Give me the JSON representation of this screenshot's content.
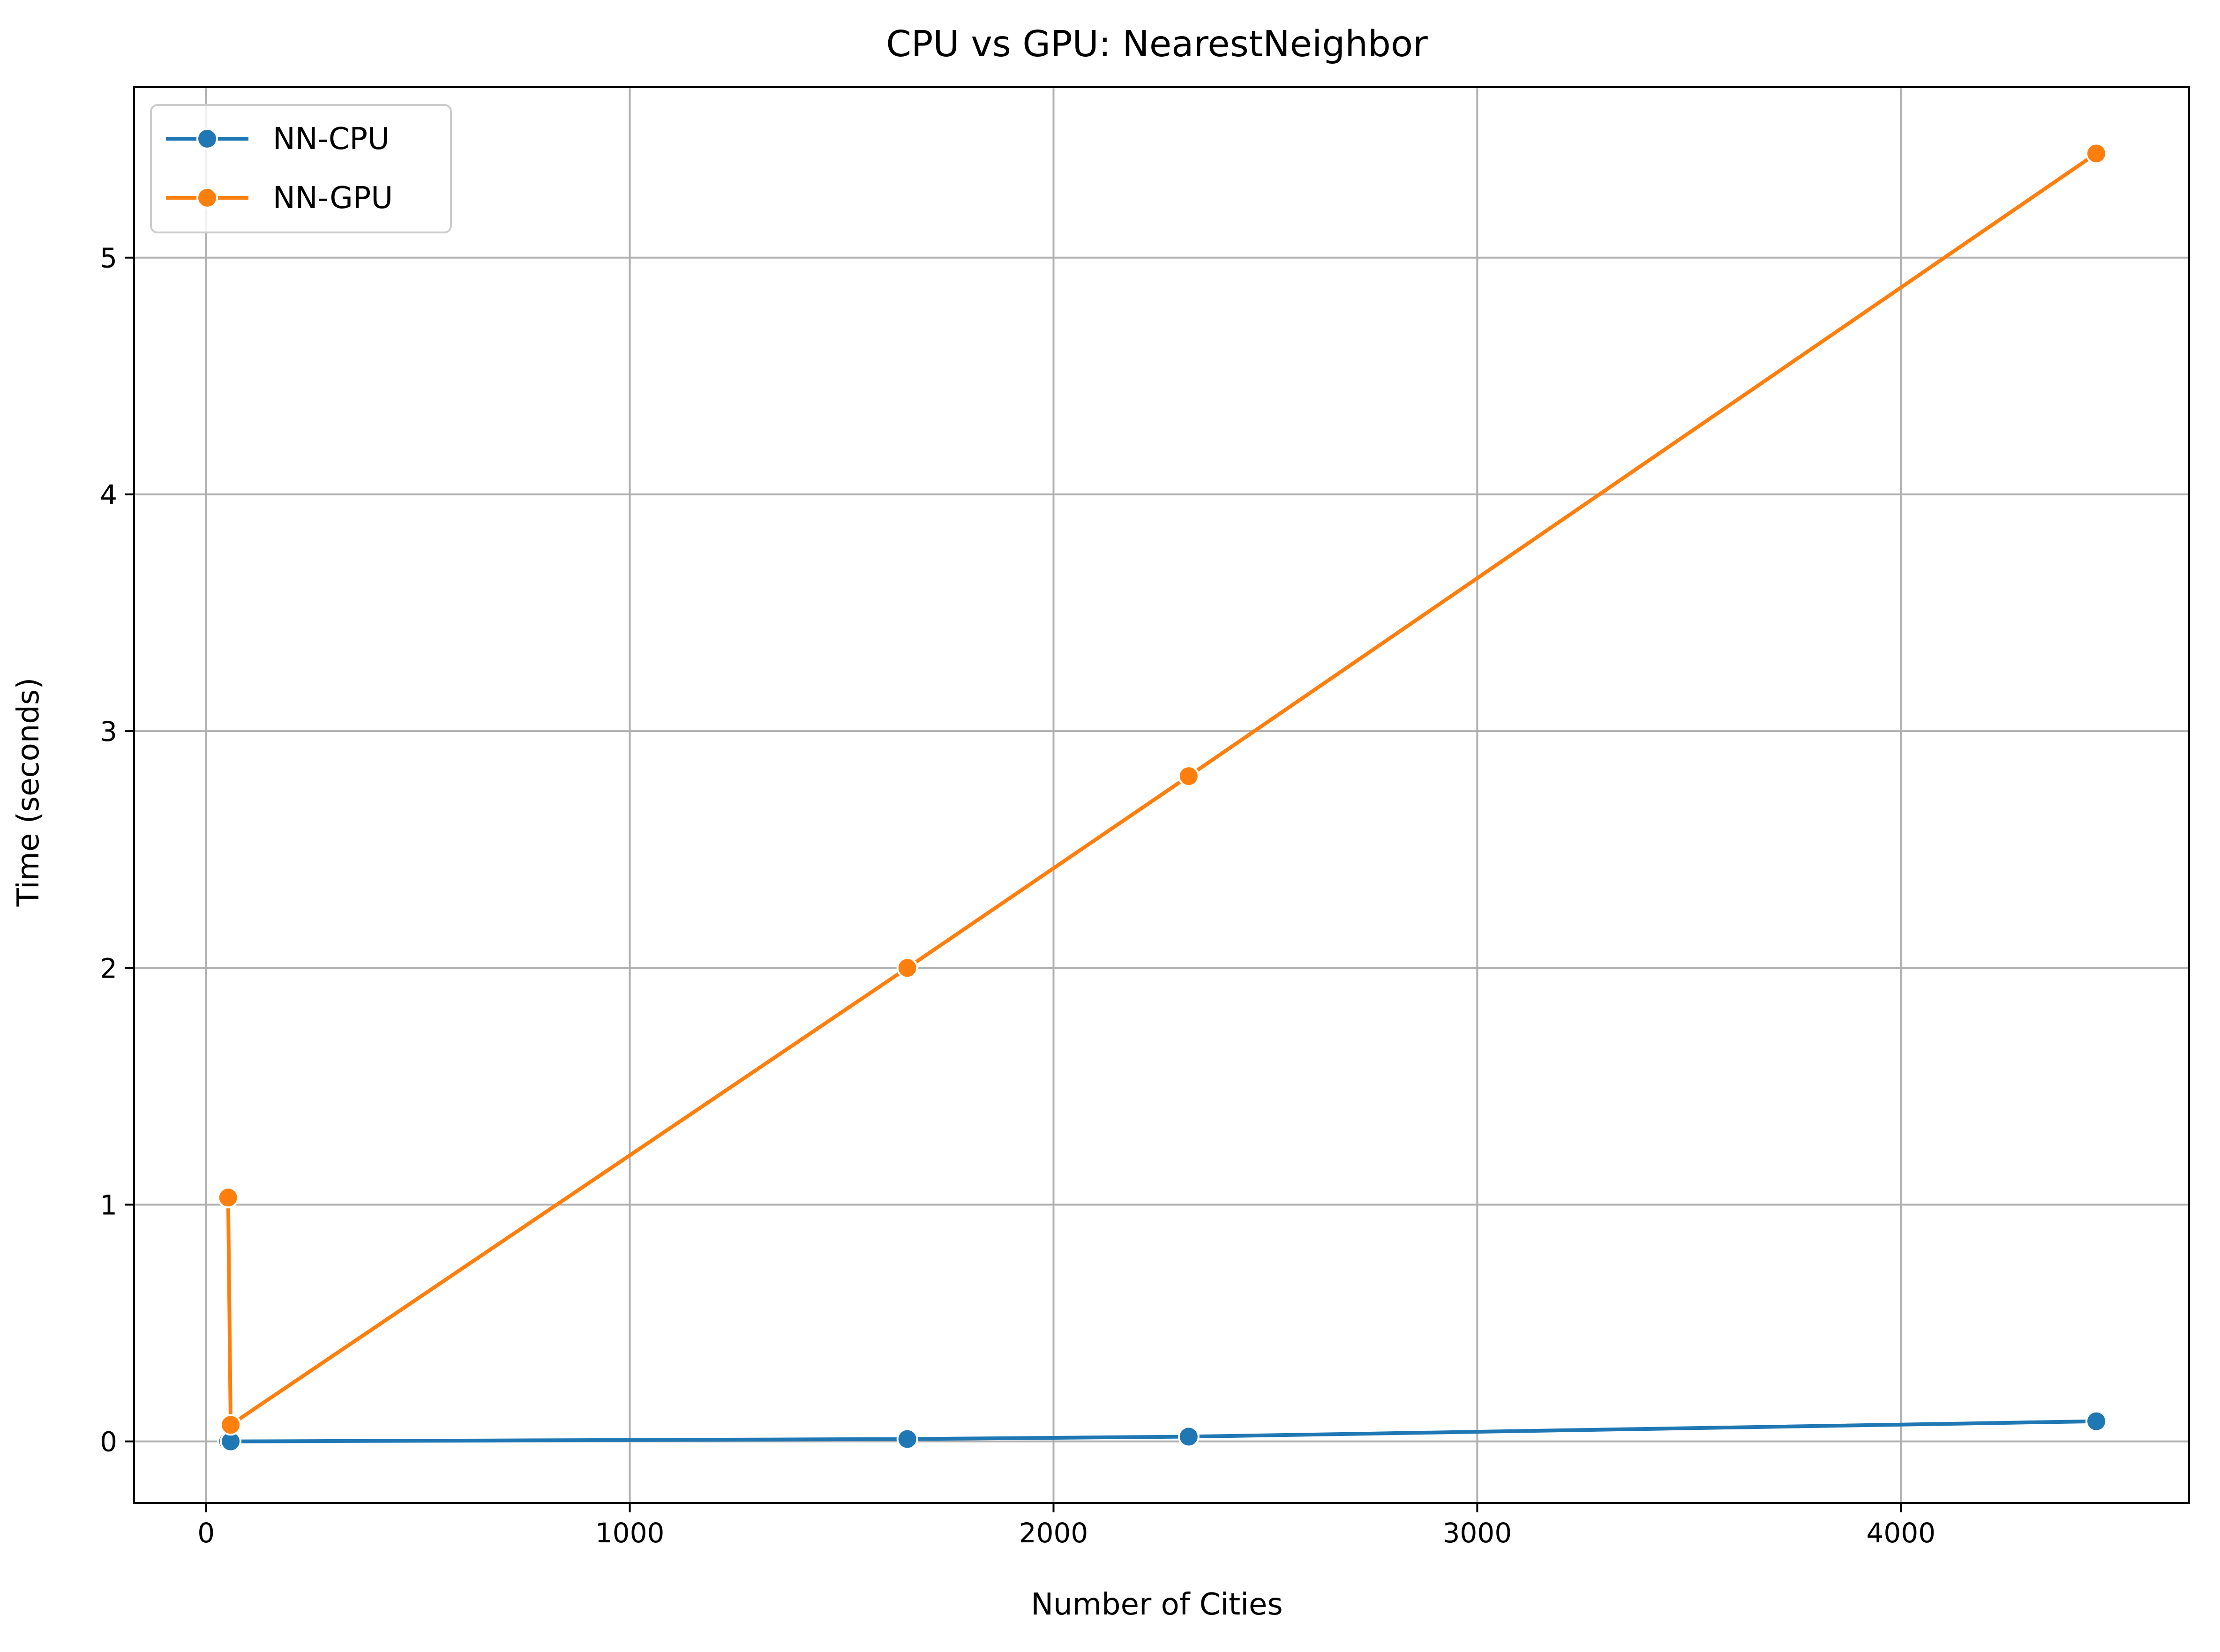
{
  "chart_data": {
    "type": "line",
    "title": "CPU vs GPU: NearestNeighbor",
    "xlabel": "Number of Cities",
    "ylabel": "Time (seconds)",
    "xlim": [
      -170,
      4680
    ],
    "ylim": [
      -0.26,
      5.72
    ],
    "xticks": [
      0,
      1000,
      2000,
      3000,
      4000
    ],
    "yticks": [
      0,
      1,
      2,
      3,
      4,
      5
    ],
    "grid": true,
    "legend_position": "top-left",
    "series": [
      {
        "name": "NN-CPU",
        "color": "#1f77b4",
        "marker": "circle",
        "points": [
          {
            "x": 52,
            "y": 0.0
          },
          {
            "x": 58,
            "y": 0.0
          },
          {
            "x": 1655,
            "y": 0.01
          },
          {
            "x": 2319,
            "y": 0.02
          },
          {
            "x": 4461,
            "y": 0.085
          }
        ]
      },
      {
        "name": "NN-GPU",
        "color": "#ff7f0e",
        "marker": "circle",
        "points": [
          {
            "x": 52,
            "y": 1.03
          },
          {
            "x": 58,
            "y": 0.07
          },
          {
            "x": 1655,
            "y": 2.0
          },
          {
            "x": 2319,
            "y": 2.81
          },
          {
            "x": 4461,
            "y": 5.44
          }
        ]
      }
    ]
  }
}
